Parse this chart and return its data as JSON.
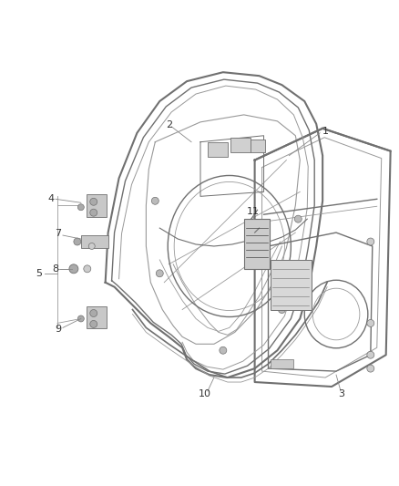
{
  "background_color": "#ffffff",
  "line_color": "#707070",
  "line_color_dark": "#444444",
  "line_color_light": "#999999",
  "label_color": "#333333",
  "fig_width": 4.38,
  "fig_height": 5.33,
  "dpi": 100
}
